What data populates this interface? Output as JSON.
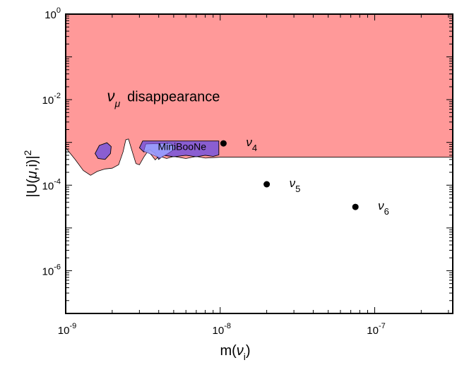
{
  "chart_data": {
    "type": "area",
    "x_scale": "log",
    "y_scale": "log",
    "xlim": [
      1e-09,
      3.2e-07
    ],
    "ylim": [
      1e-07,
      1
    ],
    "grid": false,
    "xlabel": {
      "base": "m(",
      "sym": "ν",
      "sub": "i",
      "tail": ")"
    },
    "ylabel": {
      "pre": "|U(",
      "sym": "μ",
      "mid": ",i)|",
      "sup": "2"
    },
    "x_ticks": [
      {
        "value": 1e-09,
        "mant": "10",
        "exp": "-9"
      },
      {
        "value": 1e-08,
        "mant": "10",
        "exp": "-8"
      },
      {
        "value": 1e-07,
        "mant": "10",
        "exp": "-7"
      }
    ],
    "y_ticks": [
      {
        "value": 1e-06,
        "mant": "10",
        "exp": "-6"
      },
      {
        "value": 0.0001,
        "mant": "10",
        "exp": "-4"
      },
      {
        "value": 0.01,
        "mant": "10",
        "exp": "-2"
      },
      {
        "value": 1,
        "mant": "10",
        "exp": "0"
      }
    ],
    "regions": [
      {
        "name": "disappearance",
        "label_sym": "ν",
        "label_sub": "μ",
        "label_text": "disappearance",
        "color": "#ff9999",
        "boundary": [
          [
            1e-09,
            0.00075
          ],
          [
            1.15e-09,
            0.0004
          ],
          [
            1.3e-09,
            0.00022
          ],
          [
            1.45e-09,
            0.00017
          ],
          [
            1.6e-09,
            0.00021
          ],
          [
            1.8e-09,
            0.00024
          ],
          [
            2e-09,
            0.00025
          ],
          [
            2.2e-09,
            0.0003
          ],
          [
            2.35e-09,
            0.0006
          ],
          [
            2.45e-09,
            0.00115
          ],
          [
            2.55e-09,
            0.0012
          ],
          [
            2.7e-09,
            0.0006
          ],
          [
            2.85e-09,
            0.00032
          ],
          [
            3e-09,
            0.0003
          ],
          [
            3.2e-09,
            0.00045
          ],
          [
            3.4e-09,
            0.00062
          ],
          [
            3.6e-09,
            0.0005
          ],
          [
            3.8e-09,
            0.00039
          ],
          [
            4e-09,
            0.00048
          ],
          [
            4.5e-09,
            0.00042
          ],
          [
            5e-09,
            0.00047
          ],
          [
            6e-09,
            0.00042
          ],
          [
            7e-09,
            0.00047
          ],
          [
            8e-09,
            0.00043
          ],
          [
            1e-08,
            0.00045
          ],
          [
            3.2e-07,
            0.00045
          ]
        ]
      },
      {
        "name": "MiniBooNE",
        "label": "MiniBooNe",
        "fill": "#8a5ed1",
        "inner_fill": "#9aa0ff",
        "patches": [
          [
            [
              1.55e-09,
              0.00055
            ],
            [
              1.65e-09,
              0.00085
            ],
            [
              1.85e-09,
              0.00098
            ],
            [
              1.97e-09,
              0.0008
            ],
            [
              1.95e-09,
              0.00055
            ],
            [
              1.8e-09,
              0.0004
            ],
            [
              1.62e-09,
              0.00042
            ]
          ],
          [
            [
              3e-09,
              0.00075
            ],
            [
              3.15e-09,
              0.00108
            ],
            [
              9.8e-09,
              0.00108
            ],
            [
              9.8e-09,
              0.00051
            ],
            [
              9e-09,
              0.00047
            ],
            [
              8e-09,
              0.0005
            ],
            [
              7e-09,
              0.00046
            ],
            [
              6e-09,
              0.0005
            ],
            [
              5e-09,
              0.00046
            ],
            [
              4.3e-09,
              0.0005
            ],
            [
              4e-09,
              0.0004
            ],
            [
              3.8e-09,
              0.00055
            ],
            [
              3.5e-09,
              0.00068
            ],
            [
              3.2e-09,
              0.0006
            ]
          ]
        ],
        "inner_patches": [
          [
            [
              3.2e-09,
              0.00062
            ],
            [
              3.3e-09,
              0.00092
            ],
            [
              4.8e-09,
              0.00095
            ],
            [
              5.2e-09,
              0.00075
            ],
            [
              4.6e-09,
              0.00055
            ],
            [
              4.1e-09,
              0.00043
            ],
            [
              3.7e-09,
              0.0005
            ]
          ]
        ]
      }
    ],
    "points": [
      {
        "name": "ν4",
        "sym": "ν",
        "sub": "4",
        "x": 1.05e-08,
        "y": 0.00095
      },
      {
        "name": "ν5",
        "sym": "ν",
        "sub": "5",
        "x": 2e-08,
        "y": 0.000105
      },
      {
        "name": "ν6",
        "sym": "ν",
        "sub": "6",
        "x": 7.5e-08,
        "y": 3.1e-05
      }
    ]
  }
}
